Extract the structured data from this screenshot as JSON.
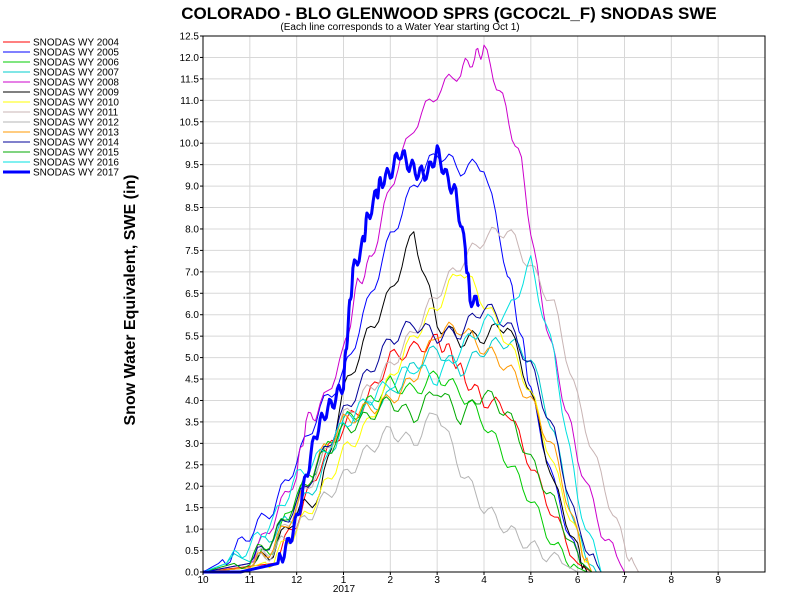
{
  "chart_data": {
    "type": "line",
    "title": "COLORADO - BLO GLENWOOD SPRS (GCOC2L_F) SNODAS SWE",
    "subtitle": "(Each line corresponds to a Water Year starting Oct 1)",
    "ylabel": "Snow Water Equivalent, SWE (in)",
    "xlabel": "",
    "ylim": [
      0,
      12.5
    ],
    "yticks": [
      "0.0",
      "0.5",
      "1.0",
      "1.5",
      "2.0",
      "2.5",
      "3.0",
      "3.5",
      "4.0",
      "4.5",
      "5.0",
      "5.5",
      "6.0",
      "6.5",
      "7.0",
      "7.5",
      "8.0",
      "8.5",
      "9.0",
      "9.5",
      "10.0",
      "10.5",
      "11.0",
      "11.5",
      "12.0",
      "12.5"
    ],
    "xlim": [
      0,
      12
    ],
    "xticks": [
      {
        "pos": 0,
        "label": "10"
      },
      {
        "pos": 1,
        "label": "11"
      },
      {
        "pos": 2,
        "label": "12"
      },
      {
        "pos": 3,
        "label": "1"
      },
      {
        "pos": 4,
        "label": "2"
      },
      {
        "pos": 5,
        "label": "3"
      },
      {
        "pos": 6,
        "label": "4"
      },
      {
        "pos": 7,
        "label": "5"
      },
      {
        "pos": 8,
        "label": "6"
      },
      {
        "pos": 9,
        "label": "7"
      },
      {
        "pos": 10,
        "label": "8"
      },
      {
        "pos": 11,
        "label": "9"
      }
    ],
    "xyear_label": "2017",
    "grid": true,
    "legend_position": "left",
    "series": [
      {
        "name": "SNODAS WY 2004",
        "color": "#ff0000",
        "width": 1,
        "x": [
          0,
          1.5,
          2,
          2.5,
          3,
          3.5,
          4,
          4.5,
          5,
          5.3,
          5.6,
          6,
          6.5,
          7,
          7.5,
          8,
          8.3
        ],
        "y": [
          0,
          0.2,
          1.2,
          2.5,
          3.4,
          4.0,
          5.0,
          5.2,
          5.4,
          5.1,
          4.5,
          4.0,
          3.8,
          2.5,
          1.3,
          0.2,
          0
        ]
      },
      {
        "name": "SNODAS WY 2005",
        "color": "#0000ff",
        "width": 1,
        "x": [
          0,
          0.5,
          1,
          1.5,
          2,
          2.5,
          3,
          3.5,
          4,
          4.5,
          5,
          5.5,
          6,
          6.5,
          6.8,
          7,
          7.5,
          8,
          8.3
        ],
        "y": [
          0,
          0.3,
          0.9,
          1.5,
          2.6,
          3.8,
          4.6,
          6.2,
          7.8,
          9.0,
          9.8,
          9.4,
          9.5,
          7.0,
          5.5,
          4.2,
          2.0,
          0.3,
          0
        ]
      },
      {
        "name": "SNODAS WY 2006",
        "color": "#00cc00",
        "width": 1,
        "x": [
          0,
          1,
          1.5,
          2,
          2.5,
          3,
          3.5,
          4,
          4.5,
          5,
          5.5,
          6,
          6.5,
          7,
          7.5,
          8,
          8.2
        ],
        "y": [
          0,
          0.1,
          0.6,
          1.8,
          2.6,
          3.5,
          3.9,
          4.4,
          4.2,
          4.6,
          4.2,
          3.5,
          2.6,
          1.7,
          0.6,
          0.1,
          0
        ]
      },
      {
        "name": "SNODAS WY 2007",
        "color": "#00cccc",
        "width": 1,
        "x": [
          0,
          1,
          1.5,
          2,
          2.5,
          3,
          3.5,
          4,
          4.5,
          5,
          5.5,
          6,
          6.5,
          7,
          7.5,
          8,
          8.4
        ],
        "y": [
          0,
          0.4,
          0.9,
          1.4,
          2.2,
          3.5,
          3.8,
          4.1,
          4.8,
          5.2,
          4.7,
          5.2,
          5.4,
          5.0,
          3.2,
          0.8,
          0
        ]
      },
      {
        "name": "SNODAS WY 2008",
        "color": "#cc00cc",
        "width": 1,
        "x": [
          0,
          1,
          1.5,
          2,
          2.2,
          2.5,
          3,
          3.3,
          3.6,
          4,
          4.5,
          5,
          5.5,
          5.8,
          6,
          6.4,
          6.8,
          7.2,
          7.6,
          8,
          8.5,
          9
        ],
        "y": [
          0,
          0.2,
          1.2,
          2.3,
          3.5,
          3.8,
          5.1,
          6.7,
          7.3,
          9.0,
          10.4,
          11.2,
          11.7,
          12.0,
          12.2,
          11.0,
          9.5,
          6.5,
          4.5,
          2.7,
          1.0,
          0
        ]
      },
      {
        "name": "SNODAS WY 2009",
        "color": "#000000",
        "width": 1,
        "x": [
          0,
          1,
          1.5,
          2,
          2.5,
          3,
          3.5,
          4,
          4.5,
          5,
          5.5,
          6,
          6.5,
          7,
          7.5,
          8,
          8.2
        ],
        "y": [
          0,
          0.1,
          0.5,
          1.4,
          1.8,
          4.2,
          5.5,
          6.5,
          7.9,
          5.8,
          5.4,
          5.5,
          5.8,
          4.2,
          2.0,
          0.5,
          0
        ]
      },
      {
        "name": "SNODAS WY 2010",
        "color": "#ffff00",
        "width": 1,
        "x": [
          0,
          1,
          1.5,
          2,
          2.5,
          3,
          3.5,
          4,
          4.5,
          5,
          5.5,
          6,
          6.5,
          7,
          7.5,
          8,
          8.3
        ],
        "y": [
          0,
          0.1,
          0.3,
          1.0,
          1.8,
          2.8,
          3.4,
          4.5,
          5.5,
          6.2,
          7.1,
          6.3,
          5.4,
          4.2,
          2.4,
          0.8,
          0
        ]
      },
      {
        "name": "SNODAS WY 2011",
        "color": "#c8b4b4",
        "width": 1,
        "x": [
          0,
          1,
          1.5,
          2,
          2.5,
          3,
          3.5,
          4,
          4.5,
          5,
          5.5,
          6,
          6.5,
          7,
          7.5,
          8,
          8.5,
          9,
          9.3
        ],
        "y": [
          0,
          0.2,
          0.6,
          1.5,
          2.5,
          3.6,
          4.2,
          4.8,
          5.6,
          6.5,
          7.2,
          7.8,
          8.0,
          7.1,
          6.2,
          4.0,
          2.2,
          0.6,
          0
        ]
      },
      {
        "name": "SNODAS WY 2012",
        "color": "#b4b4b4",
        "width": 1,
        "x": [
          0,
          1,
          1.5,
          2,
          2.5,
          3,
          3.5,
          4,
          4.5,
          5,
          5.5,
          6,
          6.5,
          7,
          7.5,
          8
        ],
        "y": [
          0,
          0.1,
          0.5,
          1.0,
          1.6,
          2.2,
          2.8,
          3.3,
          3.0,
          3.8,
          2.4,
          1.5,
          1.0,
          0.6,
          0.3,
          0
        ]
      },
      {
        "name": "SNODAS WY 2013",
        "color": "#ff9900",
        "width": 1,
        "x": [
          0,
          1,
          1.5,
          2,
          2.5,
          3,
          3.5,
          4,
          4.5,
          5,
          5.5,
          6,
          6.5,
          7,
          7.5,
          8,
          8.3
        ],
        "y": [
          0,
          0.1,
          0.6,
          1.5,
          2.7,
          3.5,
          3.8,
          4.0,
          4.5,
          5.6,
          5.7,
          5.2,
          4.8,
          4.0,
          2.8,
          0.8,
          0
        ]
      },
      {
        "name": "SNODAS WY 2014",
        "color": "#000099",
        "width": 1,
        "x": [
          0,
          1,
          1.5,
          2,
          2.5,
          3,
          3.5,
          4,
          4.5,
          5,
          5.5,
          6,
          6.5,
          7,
          7.5,
          8,
          8.5
        ],
        "y": [
          0,
          0.2,
          0.8,
          1.6,
          2.6,
          3.7,
          4.6,
          5.4,
          5.8,
          5.5,
          5.6,
          6.2,
          5.8,
          4.8,
          3.2,
          1.0,
          0
        ]
      },
      {
        "name": "SNODAS WY 2015",
        "color": "#00aa00",
        "width": 1,
        "x": [
          0,
          1,
          1.5,
          2,
          2.5,
          3,
          3.5,
          4,
          4.5,
          5,
          5.5,
          6,
          6.5,
          7,
          7.5,
          8,
          8.3
        ],
        "y": [
          0,
          0.3,
          0.8,
          1.7,
          2.6,
          3.3,
          3.6,
          4.0,
          3.6,
          4.3,
          3.6,
          4.2,
          3.7,
          2.6,
          1.6,
          0.3,
          0
        ]
      },
      {
        "name": "SNODAS WY 2016",
        "color": "#00e0e0",
        "width": 1,
        "x": [
          0,
          0.5,
          1,
          1.5,
          2,
          2.5,
          3,
          3.5,
          4,
          4.5,
          5,
          5.5,
          6,
          6.5,
          7,
          7.5,
          8,
          8.5
        ],
        "y": [
          0,
          0.2,
          0.6,
          1.2,
          2.2,
          2.7,
          3.4,
          4.0,
          4.4,
          4.8,
          4.5,
          5.2,
          5.8,
          6.0,
          7.2,
          5.0,
          1.7,
          0
        ]
      },
      {
        "name": "SNODAS WY 2017",
        "color": "#0000ff",
        "width": 3,
        "x": [
          0,
          0.8,
          1.2,
          1.6,
          1.8,
          2.0,
          2.2,
          2.4,
          2.6,
          2.8,
          3.0,
          3.1,
          3.2,
          3.4,
          3.5,
          3.7,
          3.8,
          4.0,
          4.2,
          4.4,
          4.6,
          4.8,
          5.0,
          5.2,
          5.4,
          5.6,
          5.7,
          5.9
        ],
        "y": [
          0,
          0,
          0.1,
          0.2,
          0.6,
          1.2,
          2.2,
          3.2,
          3.7,
          4.0,
          4.4,
          5.8,
          7.0,
          7.6,
          8.2,
          8.8,
          9.1,
          9.3,
          9.8,
          9.5,
          9.3,
          9.3,
          9.8,
          9.2,
          8.8,
          7.5,
          6.4,
          6.2
        ]
      }
    ]
  }
}
